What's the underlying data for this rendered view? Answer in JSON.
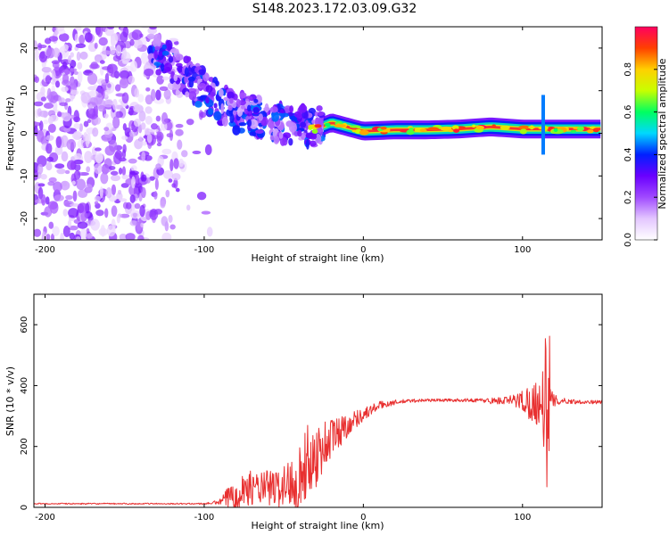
{
  "title": "S148.2023.172.03.09.G32",
  "chart_data": [
    {
      "type": "heatmap",
      "xlabel": "Height of straight line (km)",
      "ylabel": "Frequency (Hz)",
      "xlim": [
        -207,
        150
      ],
      "ylim": [
        -25,
        25
      ],
      "xticks": [
        -200,
        -100,
        0,
        100
      ],
      "yticks": [
        -20,
        -10,
        0,
        10,
        20
      ],
      "grid": false,
      "colorbar": {
        "label": "Normalized spectral amplitude",
        "range": [
          0.0,
          1.0
        ],
        "ticks": [
          0.0,
          0.2,
          0.4,
          0.6,
          0.8
        ],
        "colors": [
          "#ffffff",
          "#e3c6ff",
          "#a04aff",
          "#6a00ff",
          "#0020ff",
          "#00d8ff",
          "#00ff60",
          "#c8ff00",
          "#ffd000",
          "#ff4000",
          "#ff0060"
        ]
      },
      "ridge": [
        {
          "x": -130,
          "y": 19
        },
        {
          "x": -120,
          "y": 16
        },
        {
          "x": -110,
          "y": 13
        },
        {
          "x": -100,
          "y": 10
        },
        {
          "x": -90,
          "y": 7
        },
        {
          "x": -80,
          "y": 5
        },
        {
          "x": -70,
          "y": 4
        },
        {
          "x": -60,
          "y": 3
        },
        {
          "x": -50,
          "y": 2.5
        },
        {
          "x": -40,
          "y": 1.5
        },
        {
          "x": -30,
          "y": 1.0
        },
        {
          "x": -20,
          "y": 2.5
        },
        {
          "x": -10,
          "y": 1.5
        },
        {
          "x": 0,
          "y": 0.5
        },
        {
          "x": 20,
          "y": 0.8
        },
        {
          "x": 40,
          "y": 0.8
        },
        {
          "x": 60,
          "y": 1.0
        },
        {
          "x": 80,
          "y": 1.5
        },
        {
          "x": 100,
          "y": 1.0
        },
        {
          "x": 115,
          "y": 1.0
        },
        {
          "x": 130,
          "y": 1.0
        },
        {
          "x": 150,
          "y": 1.0
        }
      ],
      "noise_region": {
        "x_min": -207,
        "x_max": -95,
        "y_min": -25,
        "y_max": 25,
        "level": 0.15
      },
      "spike": {
        "x": 113,
        "y_min": -5,
        "y_max": 9
      }
    },
    {
      "type": "line",
      "xlabel": "Height of straight line (km)",
      "ylabel": "SNR (10 * v/v)",
      "xlim": [
        -207,
        150
      ],
      "ylim": [
        0,
        700
      ],
      "xticks": [
        -200,
        -100,
        0,
        100
      ],
      "yticks": [
        0,
        200,
        400,
        600
      ],
      "grid": false,
      "series": [
        {
          "color": "#e83030",
          "x": [
            -207,
            -190,
            -170,
            -150,
            -130,
            -110,
            -100,
            -95,
            -90,
            -85,
            -80,
            -75,
            -70,
            -65,
            -60,
            -55,
            -50,
            -45,
            -40,
            -35,
            -30,
            -25,
            -20,
            -15,
            -10,
            -5,
            0,
            5,
            10,
            15,
            20,
            30,
            40,
            50,
            60,
            70,
            80,
            90,
            95,
            100,
            105,
            110,
            113,
            115,
            117,
            118,
            120,
            125,
            130,
            140,
            150
          ],
          "values": [
            12,
            12,
            12,
            12,
            12,
            12,
            12,
            14,
            18,
            30,
            50,
            60,
            65,
            60,
            65,
            60,
            70,
            85,
            100,
            150,
            170,
            200,
            230,
            250,
            270,
            290,
            305,
            320,
            335,
            340,
            345,
            350,
            352,
            352,
            352,
            352,
            350,
            350,
            352,
            350,
            345,
            345,
            350,
            330,
            320,
            340,
            350,
            350,
            348,
            346,
            346
          ],
          "jitter": [
            2,
            2,
            2,
            2,
            2,
            2,
            3,
            4,
            10,
            40,
            60,
            60,
            55,
            55,
            60,
            65,
            70,
            90,
            110,
            120,
            110,
            90,
            70,
            55,
            40,
            30,
            22,
            18,
            14,
            10,
            8,
            6,
            5,
            5,
            5,
            6,
            10,
            15,
            20,
            40,
            60,
            80,
            150,
            260,
            330,
            50,
            20,
            10,
            8,
            6,
            6
          ]
        }
      ]
    }
  ]
}
